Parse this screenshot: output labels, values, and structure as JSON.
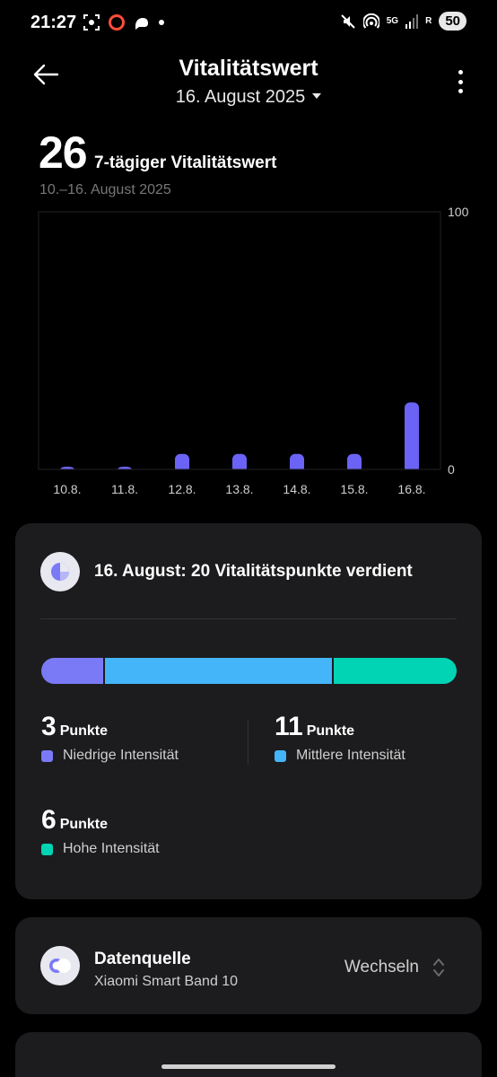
{
  "status_bar": {
    "time": "21:27",
    "network": "5G",
    "roaming": "R",
    "battery": "50"
  },
  "header": {
    "title": "Vitalitätswert",
    "date": "16. August 2025"
  },
  "score": {
    "value": "26",
    "label": "7-tägiger Vitalitätswert",
    "range": "10.–16. August 2025"
  },
  "chart_data": {
    "type": "bar",
    "categories": [
      "10.8.",
      "11.8.",
      "12.8.",
      "13.8.",
      "14.8.",
      "15.8.",
      "16.8."
    ],
    "values": [
      1,
      1,
      6,
      6,
      6,
      6,
      26
    ],
    "ylim": [
      0,
      100
    ],
    "y_ticks": [
      "100",
      "0"
    ],
    "bar_color": "#6b63f5",
    "grid": false
  },
  "daily": {
    "title": "16. August: 20 Vitalitätspunkte verdient",
    "low": {
      "points": "3",
      "unit": "Punkte",
      "label": "Niedrige Intensität",
      "color": "#7a7af7"
    },
    "mid": {
      "points": "11",
      "unit": "Punkte",
      "label": "Mittlere Intensität",
      "color": "#45b5fa"
    },
    "high": {
      "points": "6",
      "unit": "Punkte",
      "label": "Hohe Intensität",
      "color": "#00d4b4"
    }
  },
  "source": {
    "title": "Datenquelle",
    "device": "Xiaomi Smart Band 10",
    "switch_label": "Wechseln"
  }
}
